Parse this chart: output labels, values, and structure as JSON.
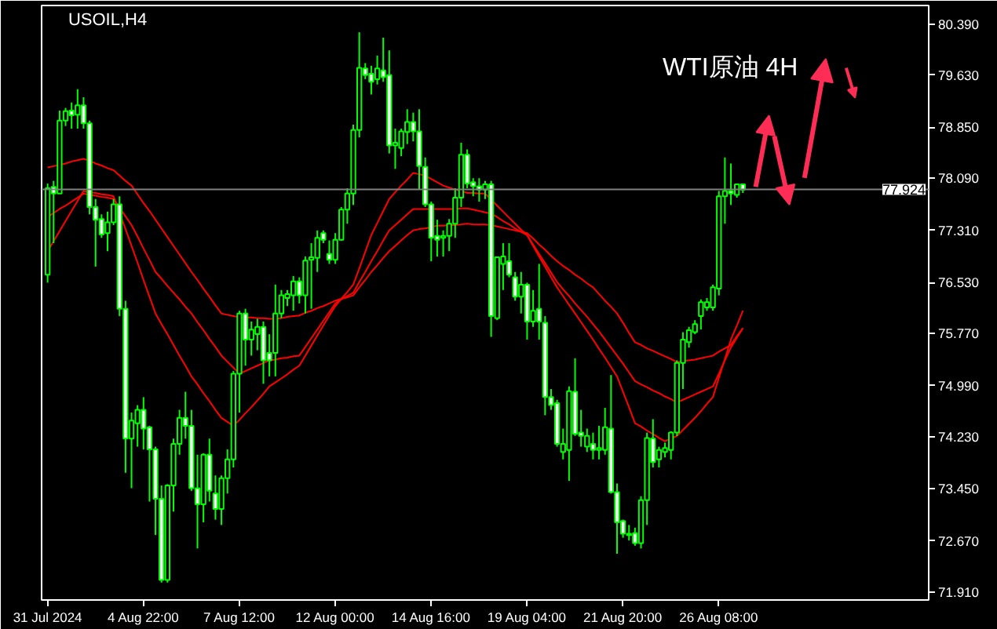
{
  "chart_data": {
    "type": "candlestick",
    "title": "USOIL,H4",
    "annotations": [
      "WTI原油 4H"
    ],
    "categories": [
      "31 Jul 2024",
      null,
      null,
      null,
      null,
      null,
      null,
      null,
      null,
      null,
      null,
      null,
      null,
      null,
      null,
      null,
      "4 Aug 22:00",
      null,
      null,
      null,
      null,
      null,
      null,
      null,
      null,
      null,
      null,
      null,
      null,
      null,
      null,
      null,
      "7 Aug 12:00",
      null,
      null,
      null,
      null,
      null,
      null,
      null,
      null,
      null,
      null,
      null,
      null,
      null,
      null,
      null,
      "12 Aug 00:00",
      null,
      null,
      null,
      null,
      null,
      null,
      null,
      null,
      null,
      null,
      null,
      null,
      null,
      null,
      null,
      "14 Aug 16:00",
      null,
      null,
      null,
      null,
      null,
      null,
      null,
      null,
      null,
      null,
      null,
      null,
      null,
      null,
      null,
      "19 Aug 04:00",
      null,
      null,
      null,
      null,
      null,
      null,
      null,
      null,
      null,
      null,
      null,
      null,
      null,
      null,
      null,
      "21 Aug 20:00",
      null,
      null,
      null,
      null,
      null,
      null,
      null,
      null,
      null,
      null,
      null,
      null,
      null,
      null,
      null,
      "26 Aug 08:00",
      null,
      null,
      null,
      null
    ],
    "ylim": [
      71.79,
      80.67
    ],
    "yticks": [
      {
        "value": 71.91,
        "label": "71.910"
      },
      {
        "value": 72.67,
        "label": "72.670"
      },
      {
        "value": 73.45,
        "label": "73.450"
      },
      {
        "value": 74.23,
        "label": "74.230"
      },
      {
        "value": 74.99,
        "label": "74.990"
      },
      {
        "value": 75.77,
        "label": "75.770"
      },
      {
        "value": 76.53,
        "label": "76.530"
      },
      {
        "value": 77.31,
        "label": "77.310"
      },
      {
        "value": 78.09,
        "label": "78.090"
      },
      {
        "value": 78.85,
        "label": "78.850"
      },
      {
        "value": 79.63,
        "label": "79.630"
      },
      {
        "value": 80.39,
        "label": "80.390"
      }
    ],
    "ref_lines": [
      {
        "axis": "y",
        "value": 77.924,
        "label": "77.924",
        "color": "#808080"
      }
    ],
    "series": [
      {
        "type": "line",
        "color": "#ff0000",
        "values": [
          78.25,
          78.27,
          78.29,
          78.31,
          78.34,
          78.36,
          78.38,
          78.35,
          78.31,
          78.28,
          78.24,
          78.21,
          78.13,
          78.05,
          77.98,
          77.85,
          77.72,
          77.6,
          77.47,
          77.34,
          77.21,
          77.08,
          76.95,
          76.82,
          76.69,
          76.57,
          76.44,
          76.32,
          76.19,
          76.07,
          76.05,
          76.03,
          76.01,
          76.01,
          76.01,
          76.0,
          76.0,
          75.99,
          75.99,
          76.0,
          76.02,
          76.03,
          76.04,
          76.08,
          76.11,
          76.15,
          76.18,
          76.22,
          76.26,
          76.29,
          76.31,
          76.34,
          76.46,
          76.57,
          76.69,
          76.79,
          76.9,
          77.0,
          77.08,
          77.16,
          77.24,
          77.31,
          77.33,
          77.34,
          77.36,
          77.38,
          77.38,
          77.39,
          77.39,
          77.4,
          77.41,
          77.4,
          77.4,
          77.4,
          77.39,
          77.37,
          77.35,
          77.33,
          77.31,
          77.29,
          77.27,
          77.19,
          77.1,
          77.02,
          76.93,
          76.85,
          76.78,
          76.72,
          76.65,
          76.59,
          76.52,
          76.46,
          76.36,
          76.26,
          76.17,
          76.07,
          75.93,
          75.78,
          75.64,
          75.6,
          75.55,
          75.51,
          75.47,
          75.43,
          75.39,
          75.34,
          75.36,
          75.37,
          75.38,
          75.4,
          75.42,
          75.44,
          75.5,
          75.55,
          75.6,
          75.73,
          75.85
        ]
      },
      {
        "type": "line",
        "color": "#ff0000",
        "values": [
          77.51,
          77.57,
          77.63,
          77.68,
          77.74,
          77.8,
          77.86,
          77.84,
          77.83,
          77.81,
          77.8,
          77.78,
          77.65,
          77.52,
          77.39,
          77.22,
          77.04,
          76.87,
          76.69,
          76.59,
          76.48,
          76.38,
          76.28,
          76.17,
          76.07,
          75.94,
          75.82,
          75.69,
          75.57,
          75.44,
          75.35,
          75.26,
          75.17,
          75.21,
          75.25,
          75.29,
          75.33,
          75.37,
          75.38,
          75.4,
          75.41,
          75.43,
          75.44,
          75.57,
          75.7,
          75.83,
          75.96,
          76.09,
          76.22,
          76.28,
          76.33,
          76.38,
          76.54,
          76.69,
          76.85,
          77.0,
          77.16,
          77.31,
          77.39,
          77.47,
          77.55,
          77.63,
          77.63,
          77.63,
          77.63,
          77.63,
          77.63,
          77.63,
          77.63,
          77.64,
          77.64,
          77.62,
          77.6,
          77.58,
          77.56,
          77.51,
          77.45,
          77.4,
          77.34,
          77.29,
          77.24,
          77.1,
          76.96,
          76.82,
          76.68,
          76.54,
          76.43,
          76.33,
          76.22,
          76.12,
          76.02,
          75.91,
          75.8,
          75.68,
          75.56,
          75.44,
          75.32,
          75.19,
          75.06,
          75.01,
          74.97,
          74.92,
          74.88,
          74.83,
          74.79,
          74.74,
          74.78,
          74.82,
          74.86,
          74.9,
          74.94,
          74.98,
          75.17,
          75.37,
          75.56,
          75.71,
          75.85
        ]
      },
      {
        "type": "line",
        "color": "#ff0000",
        "values": [
          77.0,
          77.15,
          77.3,
          77.45,
          77.6,
          77.75,
          77.9,
          77.88,
          77.87,
          77.85,
          77.84,
          77.82,
          77.57,
          77.33,
          77.08,
          76.83,
          76.57,
          76.32,
          76.07,
          75.91,
          75.76,
          75.6,
          75.44,
          75.29,
          75.13,
          75.01,
          74.88,
          74.76,
          74.63,
          74.51,
          74.45,
          74.39,
          74.48,
          74.58,
          74.67,
          74.77,
          74.87,
          74.98,
          75.04,
          75.1,
          75.16,
          75.23,
          75.29,
          75.44,
          75.59,
          75.74,
          75.89,
          76.04,
          76.18,
          76.29,
          76.39,
          76.5,
          76.74,
          76.99,
          77.24,
          77.42,
          77.6,
          77.78,
          77.88,
          77.98,
          78.07,
          78.17,
          78.15,
          78.13,
          78.08,
          78.03,
          77.98,
          77.95,
          77.92,
          77.9,
          77.87,
          77.87,
          77.86,
          77.86,
          77.77,
          77.68,
          77.59,
          77.5,
          77.41,
          77.32,
          77.24,
          77.08,
          76.92,
          76.77,
          76.61,
          76.46,
          76.33,
          76.2,
          76.07,
          75.94,
          75.81,
          75.68,
          75.54,
          75.41,
          75.27,
          75.13,
          74.9,
          74.67,
          74.43,
          74.38,
          74.32,
          74.27,
          74.21,
          74.16,
          74.2,
          74.24,
          74.33,
          74.42,
          74.51,
          74.61,
          74.72,
          74.82,
          75.11,
          75.39,
          75.68,
          75.89,
          76.11
        ]
      },
      {
        "color": "#00ff00",
        "ohlc": [
          [
            76.65,
            78.01,
            76.53,
            77.94
          ],
          [
            77.96,
            78.05,
            77.12,
            77.86
          ],
          [
            77.86,
            79.1,
            77.86,
            78.95
          ],
          [
            78.95,
            79.14,
            78.87,
            79.09
          ],
          [
            79.1,
            79.22,
            78.83,
            79.03
          ],
          [
            79.04,
            79.42,
            78.83,
            79.18
          ],
          [
            79.18,
            79.3,
            78.83,
            78.91
          ],
          [
            78.91,
            78.95,
            77.55,
            77.66
          ],
          [
            77.66,
            77.78,
            76.77,
            77.47
          ],
          [
            77.48,
            77.55,
            77.2,
            77.25
          ],
          [
            77.27,
            77.59,
            77.0,
            77.43
          ],
          [
            77.43,
            77.78,
            77.39,
            77.7
          ],
          [
            77.7,
            77.82,
            76.03,
            76.14
          ],
          [
            76.14,
            76.26,
            73.69,
            74.2
          ],
          [
            74.2,
            74.59,
            73.46,
            74.47
          ],
          [
            74.43,
            74.7,
            74.08,
            74.63
          ],
          [
            74.63,
            74.82,
            74.04,
            74.35
          ],
          [
            74.37,
            74.39,
            73.26,
            74.04
          ],
          [
            74.04,
            74.08,
            72.76,
            73.3
          ],
          [
            73.3,
            73.5,
            72.05,
            72.09
          ],
          [
            72.09,
            73.52,
            72.05,
            73.5
          ],
          [
            73.5,
            74.2,
            73.11,
            74.12
          ],
          [
            74.12,
            74.63,
            73.96,
            74.51
          ],
          [
            74.51,
            74.9,
            74.2,
            74.39
          ],
          [
            74.39,
            74.63,
            73.42,
            73.46
          ],
          [
            73.46,
            73.96,
            72.56,
            73.22
          ],
          [
            73.22,
            73.98,
            72.95,
            73.96
          ],
          [
            73.96,
            74.2,
            73.26,
            73.42
          ],
          [
            73.38,
            73.65,
            72.99,
            73.15
          ],
          [
            73.15,
            73.65,
            72.91,
            73.61
          ],
          [
            73.61,
            74.04,
            73.38,
            73.89
          ],
          [
            73.89,
            75.21,
            73.77,
            75.17
          ],
          [
            75.17,
            76.11,
            74.59,
            76.07
          ],
          [
            76.07,
            76.14,
            75.29,
            75.68
          ],
          [
            75.68,
            75.95,
            75.44,
            75.83
          ],
          [
            75.76,
            75.99,
            75.52,
            75.87
          ],
          [
            75.87,
            75.95,
            75.02,
            75.37
          ],
          [
            75.48,
            75.76,
            75.13,
            75.37
          ],
          [
            75.48,
            76.5,
            75.13,
            76.07
          ],
          [
            76.07,
            76.42,
            76.0,
            76.34
          ],
          [
            76.3,
            76.42,
            76.18,
            76.36
          ],
          [
            76.34,
            76.63,
            76.11,
            76.55
          ],
          [
            76.55,
            76.61,
            76.22,
            76.34
          ],
          [
            76.34,
            76.92,
            76.07,
            76.86
          ],
          [
            76.87,
            77.12,
            76.14,
            76.91
          ],
          [
            76.9,
            77.31,
            76.69,
            77.2
          ],
          [
            77.27,
            77.31,
            77.12,
            77.17
          ],
          [
            76.96,
            77.16,
            76.81,
            76.87
          ],
          [
            76.87,
            77.27,
            76.81,
            77.17
          ],
          [
            77.17,
            77.66,
            77.16,
            77.62
          ],
          [
            77.62,
            77.94,
            77.41,
            77.86
          ],
          [
            77.86,
            78.89,
            77.69,
            78.81
          ],
          [
            78.81,
            80.27,
            78.7,
            79.74
          ],
          [
            79.73,
            79.81,
            79.57,
            79.63
          ],
          [
            79.65,
            79.77,
            79.34,
            79.53
          ],
          [
            79.57,
            79.92,
            79.49,
            79.73
          ],
          [
            79.7,
            80.19,
            79.53,
            79.6
          ],
          [
            79.63,
            80.0,
            78.46,
            78.58
          ],
          [
            78.58,
            78.83,
            78.23,
            78.62
          ],
          [
            78.54,
            78.83,
            78.42,
            78.79
          ],
          [
            78.78,
            79.12,
            78.6,
            78.93
          ],
          [
            78.93,
            79.07,
            78.64,
            78.79
          ],
          [
            78.79,
            79.12,
            77.92,
            78.27
          ],
          [
            78.26,
            78.4,
            77.66,
            77.7
          ],
          [
            77.7,
            77.74,
            76.85,
            77.2
          ],
          [
            77.23,
            77.47,
            76.92,
            77.17
          ],
          [
            77.2,
            77.31,
            76.92,
            77.23
          ],
          [
            77.23,
            77.48,
            77.0,
            77.41
          ],
          [
            77.41,
            77.94,
            77.2,
            77.8
          ],
          [
            77.8,
            78.62,
            77.66,
            78.44
          ],
          [
            78.44,
            78.52,
            77.94,
            78.01
          ],
          [
            78.03,
            78.09,
            77.82,
            77.97
          ],
          [
            77.97,
            78.09,
            77.74,
            77.92
          ],
          [
            77.92,
            78.05,
            77.78,
            78.0
          ],
          [
            78.0,
            78.05,
            75.72,
            76.03
          ],
          [
            76.0,
            76.92,
            75.97,
            76.91
          ],
          [
            76.81,
            77.12,
            76.42,
            76.92
          ],
          [
            76.85,
            77.12,
            76.61,
            76.65
          ],
          [
            76.61,
            76.69,
            76.26,
            76.32
          ],
          [
            76.32,
            76.69,
            76.07,
            76.5
          ],
          [
            76.5,
            76.53,
            75.68,
            75.95
          ],
          [
            75.95,
            76.42,
            75.87,
            76.11
          ],
          [
            76.14,
            76.81,
            75.68,
            75.95
          ],
          [
            75.93,
            76.03,
            74.55,
            74.82
          ],
          [
            74.82,
            74.94,
            74.63,
            74.7
          ],
          [
            74.73,
            74.78,
            74.08,
            74.12
          ],
          [
            74.0,
            74.35,
            73.89,
            74.12
          ],
          [
            74.03,
            74.98,
            73.57,
            74.91
          ],
          [
            74.9,
            75.4,
            74.24,
            74.27
          ],
          [
            74.29,
            74.63,
            74.08,
            74.24
          ],
          [
            74.08,
            74.35,
            74.0,
            74.24
          ],
          [
            74.12,
            74.29,
            73.89,
            74.03
          ],
          [
            74.03,
            74.39,
            73.89,
            74.06
          ],
          [
            74.03,
            74.66,
            73.96,
            74.37
          ],
          [
            74.35,
            75.15,
            73.38,
            73.4
          ],
          [
            73.4,
            73.53,
            72.48,
            72.95
          ],
          [
            72.97,
            72.99,
            72.72,
            72.78
          ],
          [
            72.76,
            72.91,
            72.68,
            72.78
          ],
          [
            72.79,
            72.87,
            72.6,
            72.64
          ],
          [
            72.64,
            73.34,
            72.56,
            73.28
          ],
          [
            73.28,
            74.29,
            72.91,
            74.21
          ],
          [
            74.2,
            74.49,
            73.77,
            73.85
          ],
          [
            73.89,
            74.08,
            73.77,
            74.03
          ],
          [
            74.0,
            74.14,
            73.92,
            74.06
          ],
          [
            74.03,
            74.31,
            73.89,
            74.29
          ],
          [
            74.29,
            75.37,
            74.24,
            75.33
          ],
          [
            75.33,
            75.79,
            74.94,
            75.68
          ],
          [
            75.64,
            75.87,
            75.56,
            75.82
          ],
          [
            75.79,
            75.97,
            75.76,
            75.91
          ],
          [
            76.03,
            76.28,
            75.83,
            76.24
          ],
          [
            76.16,
            76.3,
            76.11,
            76.24
          ],
          [
            76.16,
            76.5,
            76.11,
            76.46
          ],
          [
            76.44,
            77.9,
            76.34,
            77.82
          ],
          [
            77.82,
            78.4,
            77.41,
            77.9
          ],
          [
            77.9,
            78.31,
            77.69,
            77.86
          ],
          [
            77.84,
            78.01,
            77.8,
            78.0
          ],
          [
            78.0,
            78.0,
            77.87,
            77.92
          ]
        ]
      }
    ]
  }
}
